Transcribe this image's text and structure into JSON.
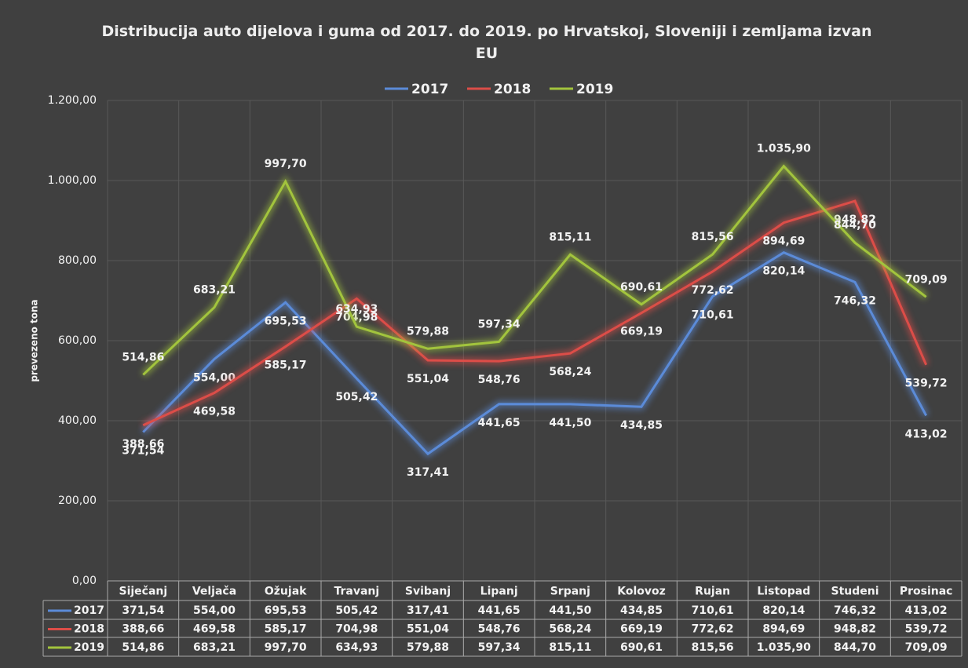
{
  "chart_data": {
    "type": "line",
    "title": "Distribucija auto dijelova i guma od 2017. do 2019. po Hrvatskoj, Sloveniji i zemljama izvan EU",
    "ylabel": "prevezeno tona",
    "categories": [
      "Siječanj",
      "Veljača",
      "Ožujak",
      "Travanj",
      "Svibanj",
      "Lipanj",
      "Srpanj",
      "Kolovoz",
      "Rujan",
      "Listopad",
      "Studeni",
      "Prosinac"
    ],
    "ylim": [
      0,
      1200
    ],
    "yticks": [
      {
        "value": 0,
        "label": "0,00"
      },
      {
        "value": 200,
        "label": "200,00"
      },
      {
        "value": 400,
        "label": "400,00"
      },
      {
        "value": 600,
        "label": "600,00"
      },
      {
        "value": 800,
        "label": "800,00"
      },
      {
        "value": 1000,
        "label": "1.000,00"
      },
      {
        "value": 1200,
        "label": "1.200,00"
      }
    ],
    "grid": true,
    "legend": "top",
    "series": [
      {
        "name": "2017",
        "color": "#5b8bd8",
        "values": [
          371.54,
          554.0,
          695.53,
          505.42,
          317.41,
          441.65,
          441.5,
          434.85,
          710.61,
          820.14,
          746.32,
          413.02
        ],
        "value_labels": [
          "371,54",
          "554,00",
          "695,53",
          "505,42",
          "317,41",
          "441,65",
          "441,50",
          "434,85",
          "710,61",
          "820,14",
          "746,32",
          "413,02"
        ]
      },
      {
        "name": "2018",
        "color": "#dc4d48",
        "values": [
          388.66,
          469.58,
          585.17,
          704.98,
          551.04,
          548.76,
          568.24,
          669.19,
          772.62,
          894.69,
          948.82,
          539.72
        ],
        "value_labels": [
          "388,66",
          "469,58",
          "585,17",
          "704,98",
          "551,04",
          "548,76",
          "568,24",
          "669,19",
          "772,62",
          "894,69",
          "948,82",
          "539,72"
        ]
      },
      {
        "name": "2019",
        "color": "#a2c43d",
        "values": [
          514.86,
          683.21,
          997.7,
          634.93,
          579.88,
          597.34,
          815.11,
          690.61,
          815.56,
          1035.9,
          844.7,
          709.09
        ],
        "value_labels": [
          "514,86",
          "683,21",
          "997,70",
          "634,93",
          "579,88",
          "597,34",
          "815,11",
          "690,61",
          "815,56",
          "1.035,90",
          "844,70",
          "709,09"
        ]
      }
    ]
  }
}
